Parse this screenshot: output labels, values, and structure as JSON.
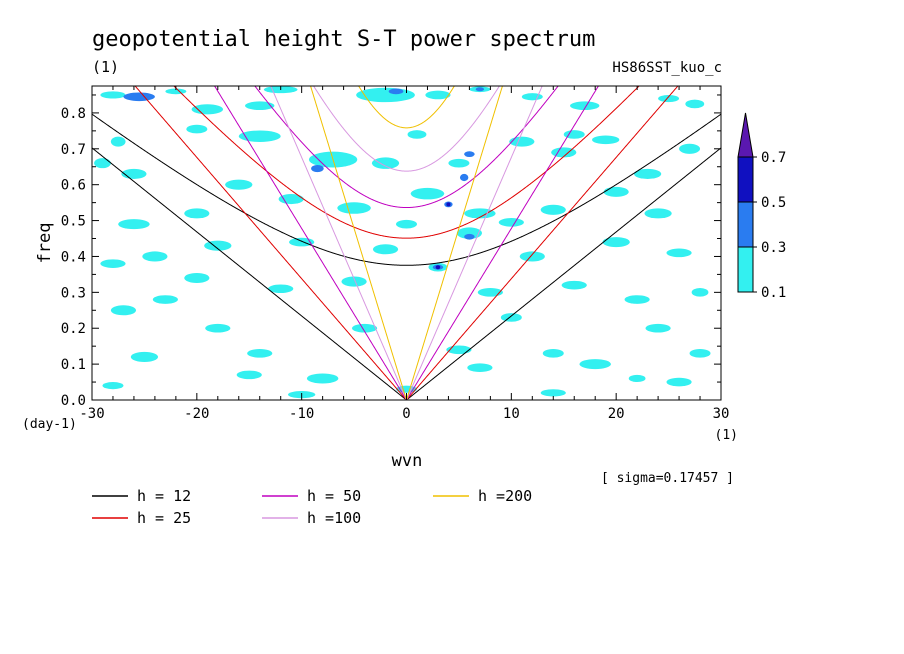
{
  "chart_data": {
    "type": "contour",
    "title": "geopotential height S-T power spectrum",
    "unit_label": "(1)",
    "run_label": "HS86SST_kuo_c",
    "xlabel": "wvn",
    "x_unit": "(1)",
    "ylabel": "freq",
    "y_unit": "(day-1)",
    "xlim": [
      -30,
      30
    ],
    "ylim": [
      0,
      0.875
    ],
    "x_ticks": [
      "-30",
      "-20",
      "-10",
      "0",
      "10",
      "20",
      "30"
    ],
    "y_ticks": [
      "0.0",
      "0.1",
      "0.2",
      "0.3",
      "0.4",
      "0.5",
      "0.6",
      "0.7",
      "0.8"
    ],
    "sigma_text": "[ sigma=0.17457 ]",
    "colorbar": {
      "levels": [
        "0.1",
        "0.3",
        "0.5",
        "0.7"
      ],
      "colors": [
        "#33f0f0",
        "#2a7cf0",
        "#1010c0",
        "#5a18b0"
      ]
    },
    "series": [
      {
        "name": "h = 12",
        "h": 12,
        "color": "#000000"
      },
      {
        "name": "h = 25",
        "h": 25,
        "color": "#e00000"
      },
      {
        "name": "h = 50",
        "h": 50,
        "color": "#c000c0"
      },
      {
        "name": "h =100",
        "h": 100,
        "color": "#d898e0"
      },
      {
        "name": "h =200",
        "h": 200,
        "color": "#f0c000"
      }
    ],
    "blobs": [
      [
        -28,
        0.85,
        1.2,
        0.01,
        1
      ],
      [
        -25.5,
        0.845,
        1.5,
        0.012,
        2
      ],
      [
        -22,
        0.86,
        1.0,
        0.008,
        1
      ],
      [
        -19,
        0.81,
        1.5,
        0.014,
        1
      ],
      [
        -14,
        0.82,
        1.4,
        0.012,
        1
      ],
      [
        -12,
        0.865,
        1.6,
        0.01,
        1
      ],
      [
        -2,
        0.85,
        2.8,
        0.02,
        1
      ],
      [
        -1,
        0.86,
        0.7,
        0.008,
        2
      ],
      [
        3,
        0.85,
        1.2,
        0.012,
        1
      ],
      [
        7,
        0.866,
        1.0,
        0.008,
        1
      ],
      [
        7,
        0.866,
        0.4,
        0.005,
        2
      ],
      [
        12,
        0.845,
        1.0,
        0.01,
        1
      ],
      [
        17,
        0.82,
        1.4,
        0.012,
        1
      ],
      [
        25,
        0.84,
        1.0,
        0.01,
        1
      ],
      [
        27.5,
        0.825,
        0.9,
        0.012,
        1
      ],
      [
        -27.5,
        0.72,
        0.7,
        0.014,
        1
      ],
      [
        -26,
        0.63,
        1.2,
        0.014,
        1
      ],
      [
        -20,
        0.755,
        1.0,
        0.012,
        1
      ],
      [
        -14,
        0.735,
        2.0,
        0.016,
        1
      ],
      [
        -7,
        0.67,
        2.3,
        0.022,
        1
      ],
      [
        -8.5,
        0.645,
        0.6,
        0.01,
        2
      ],
      [
        -2,
        0.66,
        1.3,
        0.016,
        1
      ],
      [
        1,
        0.74,
        0.9,
        0.012,
        1
      ],
      [
        5,
        0.66,
        1.0,
        0.012,
        1
      ],
      [
        5.5,
        0.62,
        0.4,
        0.01,
        2
      ],
      [
        6,
        0.685,
        0.5,
        0.008,
        2
      ],
      [
        11,
        0.72,
        1.2,
        0.014,
        1
      ],
      [
        15,
        0.69,
        1.2,
        0.014,
        1
      ],
      [
        19,
        0.725,
        1.3,
        0.012,
        1
      ],
      [
        23,
        0.63,
        1.3,
        0.014,
        1
      ],
      [
        2,
        0.575,
        1.6,
        0.016,
        1
      ],
      [
        -5,
        0.535,
        1.6,
        0.016,
        1
      ],
      [
        -11,
        0.56,
        1.2,
        0.014,
        1
      ],
      [
        -20,
        0.52,
        1.2,
        0.014,
        1
      ],
      [
        -26,
        0.49,
        1.5,
        0.014,
        1
      ],
      [
        7,
        0.52,
        1.5,
        0.014,
        1
      ],
      [
        4,
        0.545,
        0.4,
        0.008,
        2
      ],
      [
        4,
        0.545,
        0.2,
        0.004,
        3
      ],
      [
        10,
        0.495,
        1.2,
        0.012,
        1
      ],
      [
        14,
        0.53,
        1.2,
        0.014,
        1
      ],
      [
        24,
        0.52,
        1.3,
        0.014,
        1
      ],
      [
        6,
        0.465,
        1.2,
        0.016,
        1
      ],
      [
        6,
        0.455,
        0.5,
        0.008,
        2
      ],
      [
        -2,
        0.42,
        1.2,
        0.014,
        1
      ],
      [
        -10,
        0.44,
        1.2,
        0.012,
        1
      ],
      [
        -18,
        0.43,
        1.3,
        0.014,
        1
      ],
      [
        -24,
        0.4,
        1.2,
        0.014,
        1
      ],
      [
        -28,
        0.38,
        1.2,
        0.012,
        1
      ],
      [
        3,
        0.37,
        0.9,
        0.012,
        1
      ],
      [
        3,
        0.37,
        0.5,
        0.007,
        2
      ],
      [
        3,
        0.37,
        0.22,
        0.004,
        3
      ],
      [
        12,
        0.4,
        1.2,
        0.014,
        1
      ],
      [
        20,
        0.44,
        1.3,
        0.014,
        1
      ],
      [
        26,
        0.41,
        1.2,
        0.012,
        1
      ],
      [
        -5,
        0.33,
        1.2,
        0.014,
        1
      ],
      [
        -12,
        0.31,
        1.2,
        0.012,
        1
      ],
      [
        -20,
        0.34,
        1.2,
        0.014,
        1
      ],
      [
        -27,
        0.25,
        1.2,
        0.014,
        1
      ],
      [
        8,
        0.3,
        1.2,
        0.012,
        1
      ],
      [
        16,
        0.32,
        1.2,
        0.012,
        1
      ],
      [
        22,
        0.28,
        1.2,
        0.012,
        1
      ],
      [
        28,
        0.3,
        0.8,
        0.012,
        1
      ],
      [
        -25,
        0.12,
        1.3,
        0.014,
        1
      ],
      [
        -18,
        0.2,
        1.2,
        0.012,
        1
      ],
      [
        -14,
        0.13,
        1.2,
        0.012,
        1
      ],
      [
        -8,
        0.06,
        1.5,
        0.014,
        1
      ],
      [
        5,
        0.14,
        1.2,
        0.012,
        1
      ],
      [
        7,
        0.09,
        1.2,
        0.012,
        1
      ],
      [
        18,
        0.1,
        1.5,
        0.014,
        1
      ],
      [
        24,
        0.2,
        1.2,
        0.012,
        1
      ],
      [
        26,
        0.05,
        1.2,
        0.012,
        1
      ],
      [
        22,
        0.06,
        0.8,
        0.01,
        1
      ],
      [
        -28,
        0.04,
        1.0,
        0.01,
        1
      ],
      [
        -10,
        0.015,
        1.3,
        0.01,
        1
      ],
      [
        0,
        0.03,
        1.0,
        0.01,
        1
      ],
      [
        14,
        0.02,
        1.2,
        0.01,
        1
      ],
      [
        28,
        0.13,
        1.0,
        0.012,
        1
      ],
      [
        -4,
        0.2,
        1.2,
        0.012,
        1
      ],
      [
        -23,
        0.28,
        1.2,
        0.012,
        1
      ],
      [
        -29,
        0.66,
        0.8,
        0.014,
        1
      ],
      [
        20,
        0.58,
        1.2,
        0.014,
        1
      ],
      [
        27,
        0.7,
        1.0,
        0.014,
        1
      ],
      [
        -16,
        0.6,
        1.3,
        0.014,
        1
      ],
      [
        0,
        0.49,
        1.0,
        0.012,
        1
      ],
      [
        14,
        0.13,
        1.0,
        0.012,
        1
      ],
      [
        10,
        0.23,
        1.0,
        0.012,
        1
      ],
      [
        -15,
        0.07,
        1.2,
        0.012,
        1
      ],
      [
        16,
        0.74,
        1.0,
        0.012,
        1
      ]
    ]
  }
}
